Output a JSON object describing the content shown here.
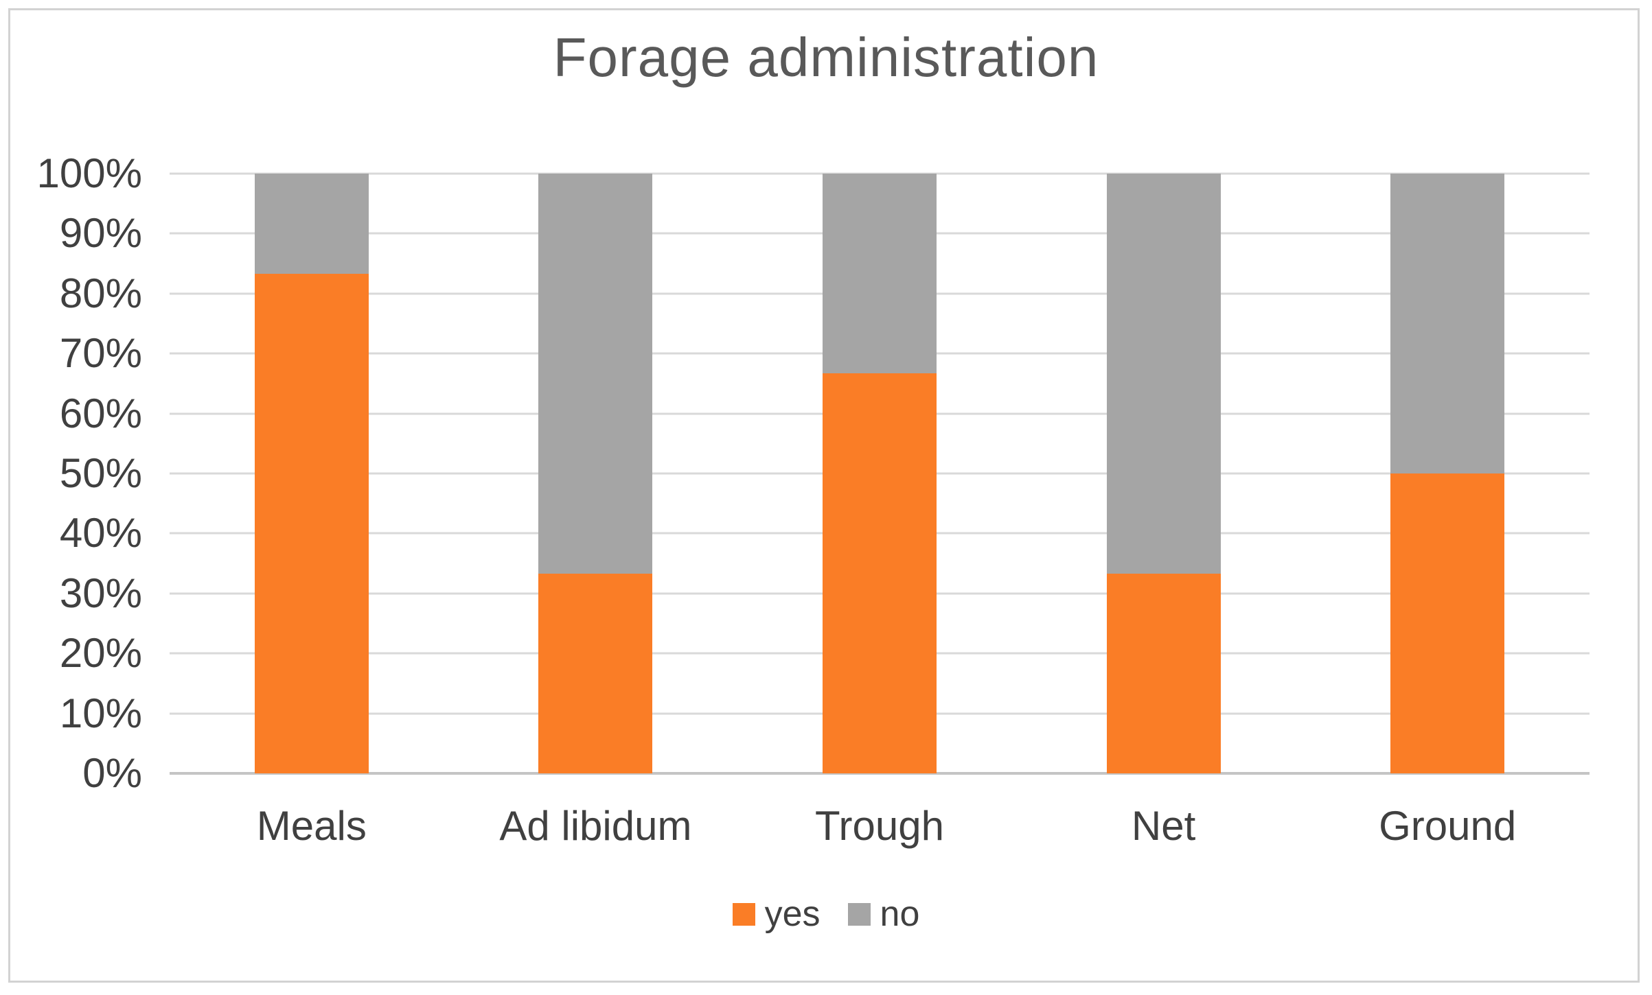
{
  "title": "Forage administration",
  "chart_data": {
    "type": "bar",
    "stacked": true,
    "percent_stacked": true,
    "title": "Forage administration",
    "categories": [
      "Meals",
      "Ad libidum",
      "Trough",
      "Net",
      "Ground"
    ],
    "series": [
      {
        "name": "yes",
        "color": "#fa7d26",
        "values": [
          83.3,
          33.3,
          66.7,
          33.3,
          50
        ]
      },
      {
        "name": "no",
        "color": "#a5a5a5",
        "values": [
          16.7,
          66.7,
          33.3,
          66.7,
          50
        ]
      }
    ],
    "xlabel": "",
    "ylabel": "",
    "ylim": [
      0,
      100
    ],
    "ytick_labels": [
      "0%",
      "10%",
      "20%",
      "30%",
      "40%",
      "50%",
      "60%",
      "70%",
      "80%",
      "90%",
      "100%"
    ],
    "ytick_values": [
      0,
      10,
      20,
      30,
      40,
      50,
      60,
      70,
      80,
      90,
      100
    ],
    "grid": "horizontal",
    "legend_position": "bottom",
    "legend_labels": [
      "yes",
      "no"
    ]
  },
  "colors": {
    "title_text": "#595959",
    "axis_text": "#404040",
    "gridline": "#d9d9d9",
    "baseline": "#c4c4c4",
    "frame_border": "#d2d2d2",
    "background": "#ffffff",
    "series_yes": "#fa7d26",
    "series_no": "#a5a5a5"
  }
}
